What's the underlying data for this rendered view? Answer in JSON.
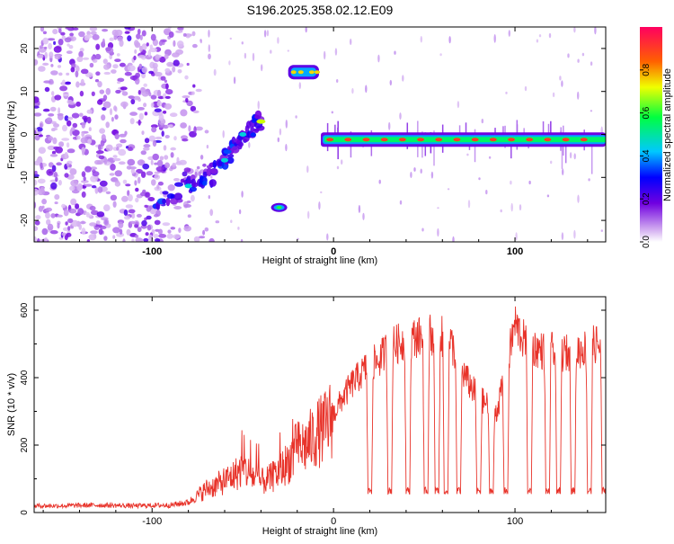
{
  "title": "S196.2025.358.02.12.E09",
  "colors": {
    "axis": "#000000",
    "snr_line": "#e8332a"
  },
  "chart_data": [
    {
      "type": "heatmap",
      "name": "spectrogram",
      "xlabel": "Height of straight line (km)",
      "ylabel": "Frequency (Hz)",
      "xlim": [
        -165,
        150
      ],
      "ylim": [
        -25,
        25
      ],
      "xticks": [
        -100,
        0,
        100
      ],
      "xtick_labels": [
        "-100",
        "0",
        "100"
      ],
      "yticks": [
        -20,
        -10,
        0,
        10,
        20
      ],
      "ytick_labels": [
        "-20",
        "-10",
        "0",
        "10",
        "20"
      ],
      "colorbar": {
        "label": "Normalized spectral amplitude",
        "range": [
          0,
          1
        ],
        "ticks": [
          0.0,
          0.2,
          0.4,
          0.6,
          0.8
        ],
        "tick_labels": [
          "0.0",
          "0.2",
          "0.4",
          "0.6",
          "0.8"
        ]
      },
      "features": [
        {
          "name": "noise-region",
          "x_range": [
            -165,
            -75
          ],
          "freq_range": [
            -25,
            25
          ],
          "amplitude": 0.15
        },
        {
          "name": "rising-track",
          "points": [
            [
              -100,
              -17
            ],
            [
              -80,
              -12
            ],
            [
              -70,
              -11
            ],
            [
              -60,
              -6
            ],
            [
              -55,
              -3
            ],
            [
              -50,
              0
            ],
            [
              -45,
              1.5
            ],
            [
              -40,
              3
            ]
          ],
          "amplitude": 0.45
        },
        {
          "name": "isolated-burst-low",
          "x": -30,
          "freq": -17,
          "amplitude": 0.6
        },
        {
          "name": "isolated-burst-high",
          "x_range": [
            -25,
            -8
          ],
          "freq": 14.5,
          "amplitude": 0.75
        },
        {
          "name": "steady-tone",
          "x_range": [
            -7,
            150
          ],
          "freq": -1.2,
          "amplitude": 0.9
        }
      ]
    },
    {
      "type": "line",
      "name": "snr",
      "xlabel": "Height of straight line (km)",
      "ylabel": "SNR (10 * v/v)",
      "xlim": [
        -165,
        150
      ],
      "ylim": [
        0,
        640
      ],
      "xticks": [
        -100,
        0,
        100
      ],
      "xtick_labels": [
        "-100",
        "0",
        "100"
      ],
      "yticks": [
        0,
        200,
        400,
        600
      ],
      "ytick_labels": [
        "0",
        "200",
        "400",
        "600"
      ],
      "series": [
        {
          "name": "SNR",
          "x": [
            -165,
            -150,
            -130,
            -110,
            -90,
            -80,
            -75,
            -70,
            -65,
            -60,
            -55,
            -50,
            -45,
            -40,
            -35,
            -30,
            -25,
            -20,
            -15,
            -10,
            -5,
            0,
            5,
            10,
            15,
            20,
            25,
            30,
            35,
            40,
            45,
            50,
            55,
            60,
            65,
            70,
            75,
            80,
            85,
            90,
            95,
            100,
            105,
            110,
            115,
            120,
            125,
            130,
            135,
            140,
            145,
            150
          ],
          "values": [
            20,
            20,
            22,
            20,
            22,
            30,
            50,
            70,
            80,
            95,
            110,
            130,
            110,
            90,
            100,
            120,
            150,
            190,
            200,
            230,
            250,
            290,
            340,
            380,
            410,
            440,
            450,
            490,
            500,
            510,
            520,
            520,
            530,
            520,
            500,
            430,
            380,
            340,
            320,
            300,
            420,
            560,
            510,
            490,
            480,
            480,
            470,
            475,
            480,
            490,
            500,
            480
          ],
          "dips": [
            20,
            31,
            41,
            51,
            57,
            62,
            69,
            80,
            87,
            95,
            108,
            118,
            124,
            132,
            141,
            149
          ],
          "dip_floor": 55
        }
      ]
    }
  ]
}
